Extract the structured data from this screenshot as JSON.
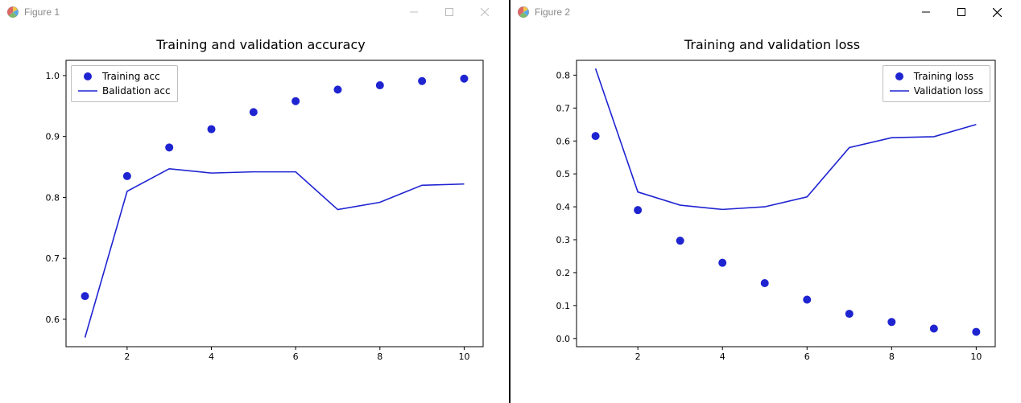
{
  "windows": [
    {
      "title": "Figure 1",
      "chart": {
        "type": "line+scatter",
        "title": "Training and validation accuracy",
        "title_fontsize": 16,
        "x": [
          1,
          2,
          3,
          4,
          5,
          6,
          7,
          8,
          9,
          10
        ],
        "scatter_y": [
          0.638,
          0.835,
          0.882,
          0.912,
          0.94,
          0.958,
          0.977,
          0.984,
          0.991,
          0.995
        ],
        "line_y": [
          0.57,
          0.81,
          0.847,
          0.84,
          0.842,
          0.842,
          0.78,
          0.792,
          0.82,
          0.822
        ],
        "scatter_label": "Training acc",
        "line_label": "Balidation acc",
        "color": "#1f24d1",
        "marker_radius": 5,
        "line_width": 1.6,
        "xlim": [
          0.55,
          10.45
        ],
        "ylim": [
          0.555,
          1.025
        ],
        "xticks": [
          2,
          4,
          6,
          8,
          10
        ],
        "yticks": [
          0.6,
          0.7,
          0.8,
          0.9,
          1.0
        ],
        "ytick_labels": [
          "0.6",
          "0.7",
          "0.8",
          "0.9",
          "1.0"
        ],
        "legend_pos": "top-left",
        "background_color": "#ffffff",
        "axis_color": "#000000",
        "tick_fontsize": 11
      }
    },
    {
      "title": "Figure 2",
      "chart": {
        "type": "line+scatter",
        "title": "Training and validation loss",
        "title_fontsize": 16,
        "x": [
          1,
          2,
          3,
          4,
          5,
          6,
          7,
          8,
          9,
          10
        ],
        "scatter_y": [
          0.615,
          0.39,
          0.297,
          0.23,
          0.168,
          0.118,
          0.075,
          0.05,
          0.03,
          0.02
        ],
        "line_y": [
          0.82,
          0.445,
          0.405,
          0.392,
          0.4,
          0.43,
          0.58,
          0.61,
          0.613,
          0.65
        ],
        "scatter_label": "Training loss",
        "line_label": "Validation loss",
        "color": "#1f24d1",
        "marker_radius": 5,
        "line_width": 1.6,
        "xlim": [
          0.55,
          10.45
        ],
        "ylim": [
          -0.025,
          0.845
        ],
        "xticks": [
          2,
          4,
          6,
          8,
          10
        ],
        "yticks": [
          0.0,
          0.1,
          0.2,
          0.3,
          0.4,
          0.5,
          0.6,
          0.7,
          0.8
        ],
        "ytick_labels": [
          "0.0",
          "0.1",
          "0.2",
          "0.3",
          "0.4",
          "0.5",
          "0.6",
          "0.7",
          "0.8"
        ],
        "legend_pos": "top-right",
        "background_color": "#ffffff",
        "axis_color": "#000000",
        "tick_fontsize": 11
      }
    }
  ],
  "titlebar_icon_colors": {
    "bg": "#ffffff",
    "stroke": "#666666"
  },
  "win_controls": {
    "minimize": "minimize",
    "maximize": "maximize",
    "close": "close"
  }
}
